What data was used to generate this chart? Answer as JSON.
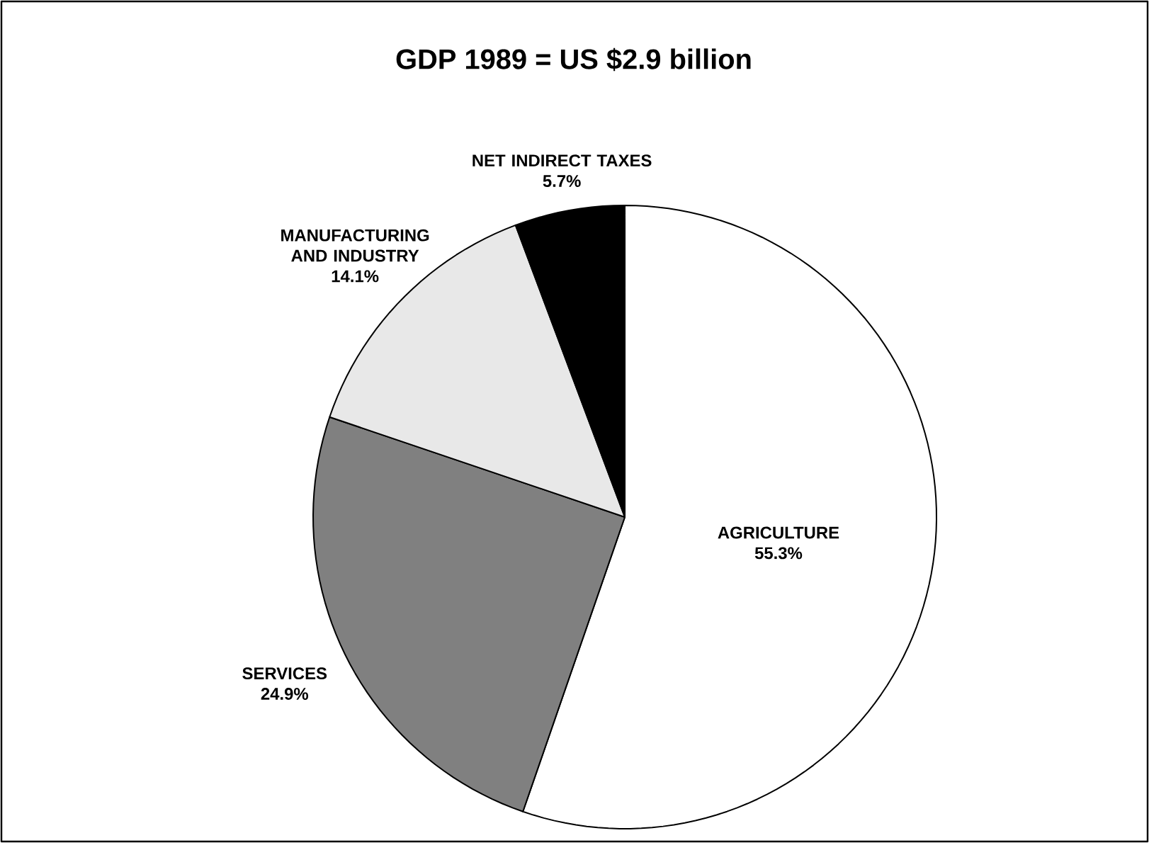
{
  "chart_data": {
    "type": "pie",
    "title": "GDP 1989 = US $2.9 billion",
    "categories": [
      "AGRICULTURE",
      "SERVICES",
      "MANUFACTURING AND INDUSTRY",
      "NET INDIRECT TAXES"
    ],
    "values": [
      55.3,
      24.9,
      14.1,
      5.7
    ],
    "value_labels": [
      "55.3%",
      "24.9%",
      "14.1%",
      "5.7%"
    ],
    "colors": [
      "#ffffff",
      "#808080",
      "#e8e8e8",
      "#000000"
    ]
  }
}
